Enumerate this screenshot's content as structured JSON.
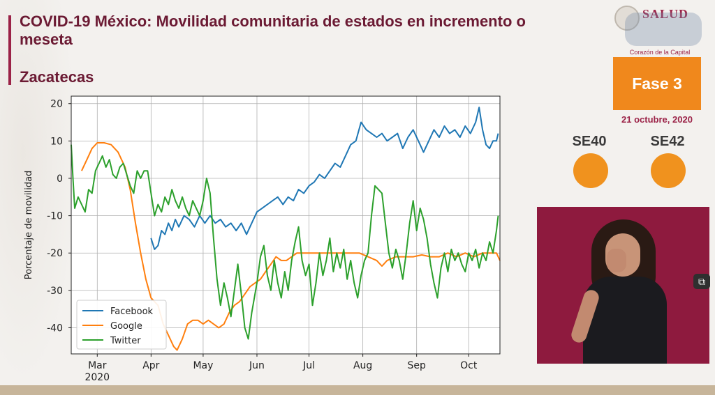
{
  "header": {
    "title": "COVID-19 México: Movilidad comunitaria de estados en incremento o meseta",
    "subtitle": "Zacatecas"
  },
  "sidebar": {
    "logo_text": "SALUD",
    "cdmx_text": "Corazón de la Capital",
    "phase": "Fase 3",
    "date": "21 octubre, 2020",
    "indicators": [
      {
        "label": "SE40",
        "color": "#f0921e"
      },
      {
        "label": "SE42",
        "color": "#f0921e"
      }
    ]
  },
  "chart_data": {
    "type": "line",
    "title": "",
    "xlabel": "",
    "ylabel": "Porcentaje de movilidad",
    "ylim": [
      -47,
      22
    ],
    "xlim": [
      "2020-02-15",
      "2020-10-19"
    ],
    "yticks": [
      -40,
      -30,
      -20,
      -10,
      0,
      10,
      20
    ],
    "xticks": [
      {
        "date": "2020-03-01",
        "label": "Mar"
      },
      {
        "date": "2020-04-01",
        "label": "Apr"
      },
      {
        "date": "2020-05-01",
        "label": "May"
      },
      {
        "date": "2020-06-01",
        "label": "Jun"
      },
      {
        "date": "2020-07-01",
        "label": "Jul"
      },
      {
        "date": "2020-08-01",
        "label": "Aug"
      },
      {
        "date": "2020-09-01",
        "label": "Sep"
      },
      {
        "date": "2020-10-01",
        "label": "Oct"
      }
    ],
    "year_label": "2020",
    "grid": true,
    "legend_position": "lower-left",
    "series": [
      {
        "name": "Facebook",
        "color": "#1f77b4",
        "points": [
          [
            "2020-04-01",
            -16
          ],
          [
            "2020-04-03",
            -19
          ],
          [
            "2020-04-05",
            -18
          ],
          [
            "2020-04-07",
            -14
          ],
          [
            "2020-04-09",
            -15
          ],
          [
            "2020-04-11",
            -12
          ],
          [
            "2020-04-13",
            -14
          ],
          [
            "2020-04-15",
            -11
          ],
          [
            "2020-04-17",
            -13
          ],
          [
            "2020-04-20",
            -10
          ],
          [
            "2020-04-23",
            -11
          ],
          [
            "2020-04-26",
            -13
          ],
          [
            "2020-04-29",
            -10
          ],
          [
            "2020-05-02",
            -12
          ],
          [
            "2020-05-05",
            -10
          ],
          [
            "2020-05-08",
            -12
          ],
          [
            "2020-05-11",
            -11
          ],
          [
            "2020-05-14",
            -13
          ],
          [
            "2020-05-17",
            -12
          ],
          [
            "2020-05-20",
            -14
          ],
          [
            "2020-05-23",
            -12
          ],
          [
            "2020-05-26",
            -15
          ],
          [
            "2020-05-29",
            -12
          ],
          [
            "2020-06-01",
            -9
          ],
          [
            "2020-06-04",
            -8
          ],
          [
            "2020-06-07",
            -7
          ],
          [
            "2020-06-10",
            -6
          ],
          [
            "2020-06-13",
            -5
          ],
          [
            "2020-06-16",
            -7
          ],
          [
            "2020-06-19",
            -5
          ],
          [
            "2020-06-22",
            -6
          ],
          [
            "2020-06-25",
            -3
          ],
          [
            "2020-06-28",
            -4
          ],
          [
            "2020-07-01",
            -2
          ],
          [
            "2020-07-04",
            -1
          ],
          [
            "2020-07-07",
            1
          ],
          [
            "2020-07-10",
            0
          ],
          [
            "2020-07-13",
            2
          ],
          [
            "2020-07-16",
            4
          ],
          [
            "2020-07-19",
            3
          ],
          [
            "2020-07-22",
            6
          ],
          [
            "2020-07-25",
            9
          ],
          [
            "2020-07-28",
            10
          ],
          [
            "2020-07-31",
            15
          ],
          [
            "2020-08-03",
            13
          ],
          [
            "2020-08-06",
            12
          ],
          [
            "2020-08-09",
            11
          ],
          [
            "2020-08-12",
            12
          ],
          [
            "2020-08-15",
            10
          ],
          [
            "2020-08-18",
            11
          ],
          [
            "2020-08-21",
            12
          ],
          [
            "2020-08-24",
            8
          ],
          [
            "2020-08-27",
            11
          ],
          [
            "2020-08-30",
            13
          ],
          [
            "2020-09-02",
            10
          ],
          [
            "2020-09-05",
            7
          ],
          [
            "2020-09-08",
            10
          ],
          [
            "2020-09-11",
            13
          ],
          [
            "2020-09-14",
            11
          ],
          [
            "2020-09-17",
            14
          ],
          [
            "2020-09-20",
            12
          ],
          [
            "2020-09-23",
            13
          ],
          [
            "2020-09-26",
            11
          ],
          [
            "2020-09-29",
            14
          ],
          [
            "2020-10-02",
            12
          ],
          [
            "2020-10-05",
            15
          ],
          [
            "2020-10-07",
            19
          ],
          [
            "2020-10-09",
            13
          ],
          [
            "2020-10-11",
            9
          ],
          [
            "2020-10-13",
            8
          ],
          [
            "2020-10-15",
            10
          ],
          [
            "2020-10-17",
            10
          ],
          [
            "2020-10-18",
            12
          ]
        ]
      },
      {
        "name": "Google",
        "color": "#ff7f0e",
        "points": [
          [
            "2020-02-21",
            2
          ],
          [
            "2020-02-24",
            5
          ],
          [
            "2020-02-27",
            8
          ],
          [
            "2020-03-01",
            9.5
          ],
          [
            "2020-03-05",
            9.5
          ],
          [
            "2020-03-09",
            9
          ],
          [
            "2020-03-13",
            7
          ],
          [
            "2020-03-17",
            3
          ],
          [
            "2020-03-20",
            -3
          ],
          [
            "2020-03-23",
            -12
          ],
          [
            "2020-03-26",
            -20
          ],
          [
            "2020-03-29",
            -27
          ],
          [
            "2020-04-01",
            -32
          ],
          [
            "2020-04-05",
            -34
          ],
          [
            "2020-04-08",
            -39
          ],
          [
            "2020-04-11",
            -42
          ],
          [
            "2020-04-14",
            -45
          ],
          [
            "2020-04-16",
            -46
          ],
          [
            "2020-04-19",
            -43
          ],
          [
            "2020-04-22",
            -39
          ],
          [
            "2020-04-25",
            -38
          ],
          [
            "2020-04-28",
            -38
          ],
          [
            "2020-05-01",
            -39
          ],
          [
            "2020-05-04",
            -38
          ],
          [
            "2020-05-07",
            -39
          ],
          [
            "2020-05-10",
            -40
          ],
          [
            "2020-05-13",
            -39
          ],
          [
            "2020-05-16",
            -36
          ],
          [
            "2020-05-19",
            -34
          ],
          [
            "2020-05-22",
            -33
          ],
          [
            "2020-05-25",
            -31
          ],
          [
            "2020-05-28",
            -29
          ],
          [
            "2020-05-31",
            -28
          ],
          [
            "2020-06-03",
            -27
          ],
          [
            "2020-06-06",
            -25
          ],
          [
            "2020-06-09",
            -23
          ],
          [
            "2020-06-12",
            -21
          ],
          [
            "2020-06-15",
            -22
          ],
          [
            "2020-06-18",
            -22
          ],
          [
            "2020-06-21",
            -21
          ],
          [
            "2020-06-24",
            -20
          ],
          [
            "2020-06-27",
            -20
          ],
          [
            "2020-07-01",
            -20
          ],
          [
            "2020-07-05",
            -20
          ],
          [
            "2020-07-10",
            -20
          ],
          [
            "2020-07-15",
            -20
          ],
          [
            "2020-07-20",
            -20
          ],
          [
            "2020-07-25",
            -20
          ],
          [
            "2020-07-30",
            -20
          ],
          [
            "2020-08-04",
            -21
          ],
          [
            "2020-08-09",
            -22
          ],
          [
            "2020-08-12",
            -23.5
          ],
          [
            "2020-08-15",
            -22
          ],
          [
            "2020-08-20",
            -21
          ],
          [
            "2020-08-25",
            -21
          ],
          [
            "2020-08-30",
            -21
          ],
          [
            "2020-09-04",
            -20.5
          ],
          [
            "2020-09-09",
            -21
          ],
          [
            "2020-09-14",
            -21
          ],
          [
            "2020-09-19",
            -20
          ],
          [
            "2020-09-24",
            -21
          ],
          [
            "2020-09-29",
            -20
          ],
          [
            "2020-10-04",
            -21
          ],
          [
            "2020-10-09",
            -20
          ],
          [
            "2020-10-14",
            -20
          ],
          [
            "2020-10-17",
            -20
          ],
          [
            "2020-10-19",
            -22
          ]
        ]
      },
      {
        "name": "Twitter",
        "color": "#2ca02c",
        "points": [
          [
            "2020-02-15",
            9
          ],
          [
            "2020-02-16",
            0
          ],
          [
            "2020-02-17",
            -8
          ],
          [
            "2020-02-19",
            -5
          ],
          [
            "2020-02-21",
            -7
          ],
          [
            "2020-02-23",
            -9
          ],
          [
            "2020-02-25",
            -3
          ],
          [
            "2020-02-27",
            -4
          ],
          [
            "2020-02-29",
            2
          ],
          [
            "2020-03-02",
            4
          ],
          [
            "2020-03-04",
            6
          ],
          [
            "2020-03-06",
            3
          ],
          [
            "2020-03-08",
            5
          ],
          [
            "2020-03-10",
            1
          ],
          [
            "2020-03-12",
            0
          ],
          [
            "2020-03-14",
            3
          ],
          [
            "2020-03-16",
            4
          ],
          [
            "2020-03-18",
            1
          ],
          [
            "2020-03-20",
            -2
          ],
          [
            "2020-03-22",
            -4
          ],
          [
            "2020-03-24",
            2
          ],
          [
            "2020-03-26",
            0
          ],
          [
            "2020-03-28",
            2
          ],
          [
            "2020-03-30",
            2
          ],
          [
            "2020-04-01",
            -4
          ],
          [
            "2020-04-03",
            -10
          ],
          [
            "2020-04-05",
            -7
          ],
          [
            "2020-04-07",
            -9
          ],
          [
            "2020-04-09",
            -5
          ],
          [
            "2020-04-11",
            -7
          ],
          [
            "2020-04-13",
            -3
          ],
          [
            "2020-04-15",
            -6
          ],
          [
            "2020-04-17",
            -8
          ],
          [
            "2020-04-19",
            -5
          ],
          [
            "2020-04-21",
            -8
          ],
          [
            "2020-04-23",
            -10
          ],
          [
            "2020-04-25",
            -6
          ],
          [
            "2020-04-27",
            -8
          ],
          [
            "2020-04-29",
            -10
          ],
          [
            "2020-05-01",
            -6
          ],
          [
            "2020-05-03",
            0
          ],
          [
            "2020-05-05",
            -4
          ],
          [
            "2020-05-07",
            -16
          ],
          [
            "2020-05-09",
            -27
          ],
          [
            "2020-05-11",
            -34
          ],
          [
            "2020-05-13",
            -28
          ],
          [
            "2020-05-15",
            -32
          ],
          [
            "2020-05-17",
            -37
          ],
          [
            "2020-05-19",
            -30
          ],
          [
            "2020-05-21",
            -23
          ],
          [
            "2020-05-23",
            -31
          ],
          [
            "2020-05-25",
            -40
          ],
          [
            "2020-05-27",
            -43
          ],
          [
            "2020-05-29",
            -36
          ],
          [
            "2020-06-01",
            -28
          ],
          [
            "2020-06-03",
            -21
          ],
          [
            "2020-06-05",
            -18
          ],
          [
            "2020-06-07",
            -26
          ],
          [
            "2020-06-09",
            -30
          ],
          [
            "2020-06-11",
            -22
          ],
          [
            "2020-06-13",
            -28
          ],
          [
            "2020-06-15",
            -32
          ],
          [
            "2020-06-17",
            -25
          ],
          [
            "2020-06-19",
            -30
          ],
          [
            "2020-06-21",
            -22
          ],
          [
            "2020-06-23",
            -17
          ],
          [
            "2020-06-25",
            -13
          ],
          [
            "2020-06-27",
            -22
          ],
          [
            "2020-06-29",
            -26
          ],
          [
            "2020-07-01",
            -23
          ],
          [
            "2020-07-03",
            -34
          ],
          [
            "2020-07-05",
            -28
          ],
          [
            "2020-07-07",
            -20
          ],
          [
            "2020-07-09",
            -26
          ],
          [
            "2020-07-11",
            -22
          ],
          [
            "2020-07-13",
            -16
          ],
          [
            "2020-07-15",
            -25
          ],
          [
            "2020-07-17",
            -20
          ],
          [
            "2020-07-19",
            -24
          ],
          [
            "2020-07-21",
            -19
          ],
          [
            "2020-07-23",
            -27
          ],
          [
            "2020-07-25",
            -22
          ],
          [
            "2020-07-27",
            -28
          ],
          [
            "2020-07-29",
            -32
          ],
          [
            "2020-07-31",
            -26
          ],
          [
            "2020-08-02",
            -22
          ],
          [
            "2020-08-04",
            -20
          ],
          [
            "2020-08-06",
            -10
          ],
          [
            "2020-08-08",
            -2
          ],
          [
            "2020-08-10",
            -3
          ],
          [
            "2020-08-12",
            -4
          ],
          [
            "2020-08-14",
            -12
          ],
          [
            "2020-08-16",
            -20
          ],
          [
            "2020-08-18",
            -24
          ],
          [
            "2020-08-20",
            -19
          ],
          [
            "2020-08-22",
            -22
          ],
          [
            "2020-08-24",
            -27
          ],
          [
            "2020-08-26",
            -20
          ],
          [
            "2020-08-28",
            -12
          ],
          [
            "2020-08-30",
            -6
          ],
          [
            "2020-09-01",
            -14
          ],
          [
            "2020-09-03",
            -8
          ],
          [
            "2020-09-05",
            -11
          ],
          [
            "2020-09-07",
            -16
          ],
          [
            "2020-09-09",
            -23
          ],
          [
            "2020-09-11",
            -28
          ],
          [
            "2020-09-13",
            -32
          ],
          [
            "2020-09-15",
            -24
          ],
          [
            "2020-09-17",
            -20
          ],
          [
            "2020-09-19",
            -25
          ],
          [
            "2020-09-21",
            -19
          ],
          [
            "2020-09-23",
            -22
          ],
          [
            "2020-09-25",
            -20
          ],
          [
            "2020-09-27",
            -23
          ],
          [
            "2020-09-29",
            -25
          ],
          [
            "2020-10-01",
            -20
          ],
          [
            "2020-10-03",
            -22
          ],
          [
            "2020-10-05",
            -19
          ],
          [
            "2020-10-07",
            -24
          ],
          [
            "2020-10-09",
            -20
          ],
          [
            "2020-10-11",
            -22
          ],
          [
            "2020-10-13",
            -17
          ],
          [
            "2020-10-15",
            -20
          ],
          [
            "2020-10-17",
            -14
          ],
          [
            "2020-10-18",
            -10
          ]
        ]
      }
    ]
  }
}
